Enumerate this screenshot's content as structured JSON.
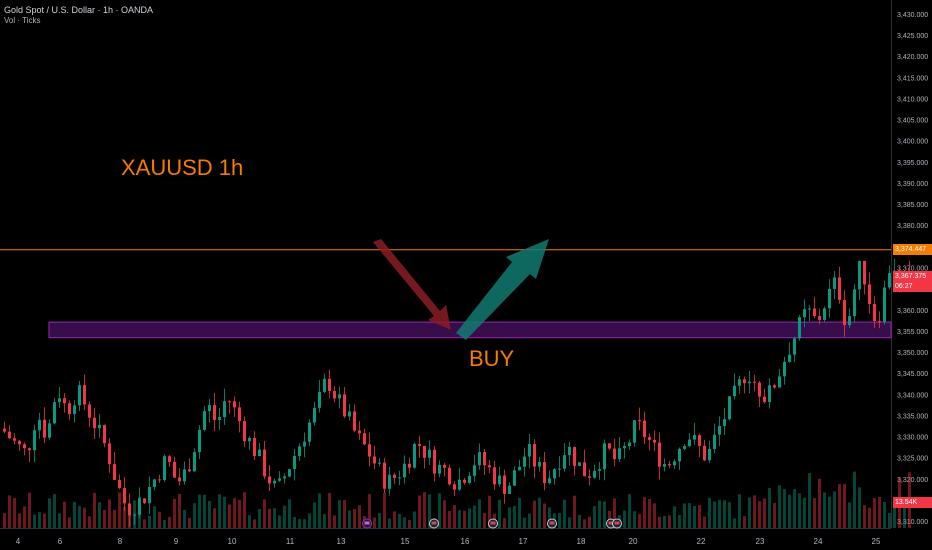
{
  "header": {
    "symbol_title": "Gold Spot / U.S. Dollar · 1h · OANDA",
    "volume_label": "Vol · Ticks"
  },
  "annotations": {
    "title_text": "XAUUSD 1h",
    "buy_text": "BUY"
  },
  "price_tags": {
    "resistance_value": "3,374.447",
    "last_price": "3,367.375",
    "countdown": "06:27",
    "volume_value": "13.54K"
  },
  "colors": {
    "background": "#000000",
    "up_candle": "#089981",
    "down_candle": "#f23645",
    "resistance_line": "#f57c00",
    "zone_fill": "#4a1266",
    "zone_border": "#9c27b0",
    "annotation_text": "#f57c00",
    "down_arrow": "#8b1c26",
    "up_arrow": "#127a70",
    "axis_text": "#b2b5be",
    "volume_tag": "#f23645"
  },
  "chart_data": {
    "type": "candlestick",
    "title": "XAUUSD 1h",
    "y_axis": {
      "ticks": [
        3310,
        3315,
        3320,
        3325,
        3330,
        3335,
        3340,
        3345,
        3350,
        3355,
        3360,
        3365,
        3370,
        3375,
        3380,
        3385,
        3390,
        3395,
        3400,
        3405,
        3410,
        3415,
        3420,
        3425,
        3430
      ],
      "tick_labels": [
        "3,310.000",
        "3,315.000",
        "3,320.000",
        "3,325.000",
        "3,330.000",
        "3,335.000",
        "3,340.000",
        "3,345.000",
        "3,350.000",
        "3,355.000",
        "3,360.000",
        "3,365.000",
        "3,370.000",
        "3,375.000",
        "3,380.000",
        "3,385.000",
        "3,390.000",
        "3,395.000",
        "3,400.000",
        "3,405.000",
        "3,410.000",
        "3,415.000",
        "3,420.000",
        "3,425.000",
        "3,430.000"
      ],
      "ylim": [
        3308,
        3432
      ]
    },
    "x_axis": {
      "tick_labels": [
        "4",
        "6",
        "8",
        "9",
        "10",
        "11",
        "13",
        "15",
        "16",
        "17",
        "18",
        "20",
        "22",
        "23",
        "24",
        "25"
      ]
    },
    "resistance_level": 3374.447,
    "last_price": 3367.375,
    "demand_zone": {
      "low": 3353.5,
      "high": 3357.2
    },
    "event_markers": 6,
    "price_path": [
      [
        0,
        3332
      ],
      [
        6,
        3328
      ],
      [
        10,
        3326
      ],
      [
        14,
        3336
      ],
      [
        18,
        3330
      ],
      [
        22,
        3342
      ],
      [
        26,
        3336
      ],
      [
        30,
        3341
      ],
      [
        34,
        3337
      ],
      [
        38,
        3332
      ],
      [
        42,
        3327
      ],
      [
        46,
        3319
      ],
      [
        50,
        3313
      ],
      [
        56,
        3315
      ],
      [
        62,
        3321
      ],
      [
        66,
        3325
      ],
      [
        70,
        3319
      ],
      [
        74,
        3322
      ],
      [
        78,
        3330
      ],
      [
        82,
        3338
      ],
      [
        86,
        3333
      ],
      [
        90,
        3340
      ],
      [
        94,
        3335
      ],
      [
        98,
        3330
      ],
      [
        102,
        3326
      ],
      [
        106,
        3321
      ],
      [
        110,
        3317
      ],
      [
        114,
        3322
      ],
      [
        118,
        3327
      ],
      [
        122,
        3332
      ],
      [
        126,
        3337
      ],
      [
        130,
        3344
      ],
      [
        134,
        3339
      ],
      [
        138,
        3335
      ],
      [
        142,
        3330
      ],
      [
        146,
        3327
      ],
      [
        150,
        3323
      ],
      [
        154,
        3319
      ],
      [
        158,
        3321
      ],
      [
        162,
        3324
      ],
      [
        166,
        3329
      ],
      [
        170,
        3326
      ],
      [
        174,
        3323
      ],
      [
        178,
        3322
      ],
      [
        182,
        3319
      ],
      [
        186,
        3322
      ],
      [
        190,
        3325
      ],
      [
        194,
        3323
      ],
      [
        198,
        3320
      ],
      [
        202,
        3318
      ],
      [
        206,
        3322
      ],
      [
        210,
        3327
      ],
      [
        214,
        3323
      ],
      [
        218,
        3320
      ],
      [
        222,
        3324
      ],
      [
        226,
        3328
      ],
      [
        230,
        3324
      ],
      [
        234,
        3321
      ],
      [
        238,
        3324
      ],
      [
        242,
        3327
      ],
      [
        246,
        3324
      ],
      [
        250,
        3328
      ],
      [
        254,
        3333
      ],
      [
        258,
        3330
      ],
      [
        262,
        3326
      ],
      [
        266,
        3323
      ],
      [
        270,
        3327
      ],
      [
        274,
        3331
      ],
      [
        278,
        3328
      ],
      [
        282,
        3325
      ],
      [
        286,
        3331
      ],
      [
        290,
        3336
      ],
      [
        294,
        3341
      ],
      [
        298,
        3346
      ],
      [
        302,
        3342
      ],
      [
        306,
        3339
      ],
      [
        310,
        3344
      ],
      [
        314,
        3350
      ],
      [
        318,
        3355
      ],
      [
        322,
        3360
      ],
      [
        326,
        3357
      ],
      [
        330,
        3363
      ],
      [
        334,
        3367
      ],
      [
        336,
        3361
      ],
      [
        338,
        3356
      ],
      [
        340,
        3362
      ],
      [
        342,
        3368
      ],
      [
        344,
        3371
      ],
      [
        346,
        3365
      ],
      [
        348,
        3360
      ],
      [
        350,
        3357
      ],
      [
        352,
        3362
      ],
      [
        354,
        3367
      ],
      [
        356,
        3373
      ],
      [
        358,
        3368
      ],
      [
        360,
        3364
      ],
      [
        362,
        3370
      ],
      [
        364,
        3367.375
      ]
    ]
  }
}
